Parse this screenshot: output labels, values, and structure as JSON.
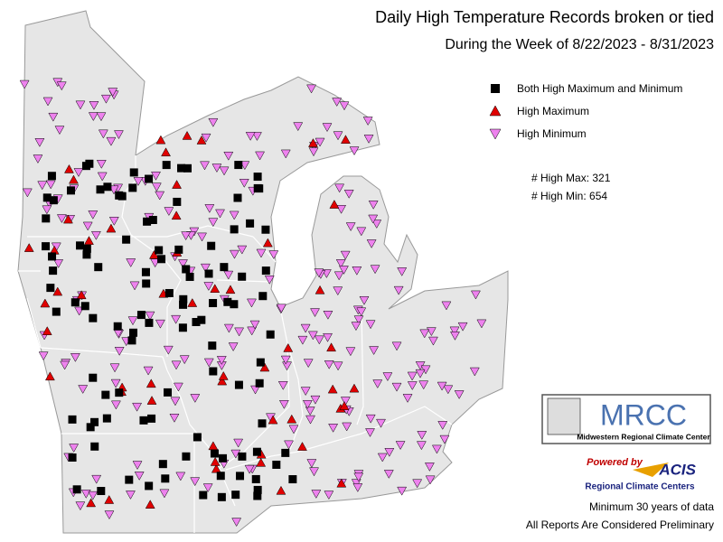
{
  "title": "Daily High Temperature Records broken or tied",
  "subtitle": "During the Week of 8/22/2023 - 8/31/2023",
  "legend": [
    "Both High Maximum and Minimum",
    "High Maximum",
    "High Minimum"
  ],
  "counts": [
    "# High Max: 321",
    "# High Min: 654"
  ],
  "logo": {
    "mrcc": "MRCC",
    "mrcc_name": "Midwestern Regional Climate Center",
    "powered": "Powered by",
    "acis": "ACIS",
    "rcc": "Regional Climate Centers"
  },
  "notes": [
    "Minimum 30 years of data",
    "All Reports Are Considered Preliminary"
  ]
}
